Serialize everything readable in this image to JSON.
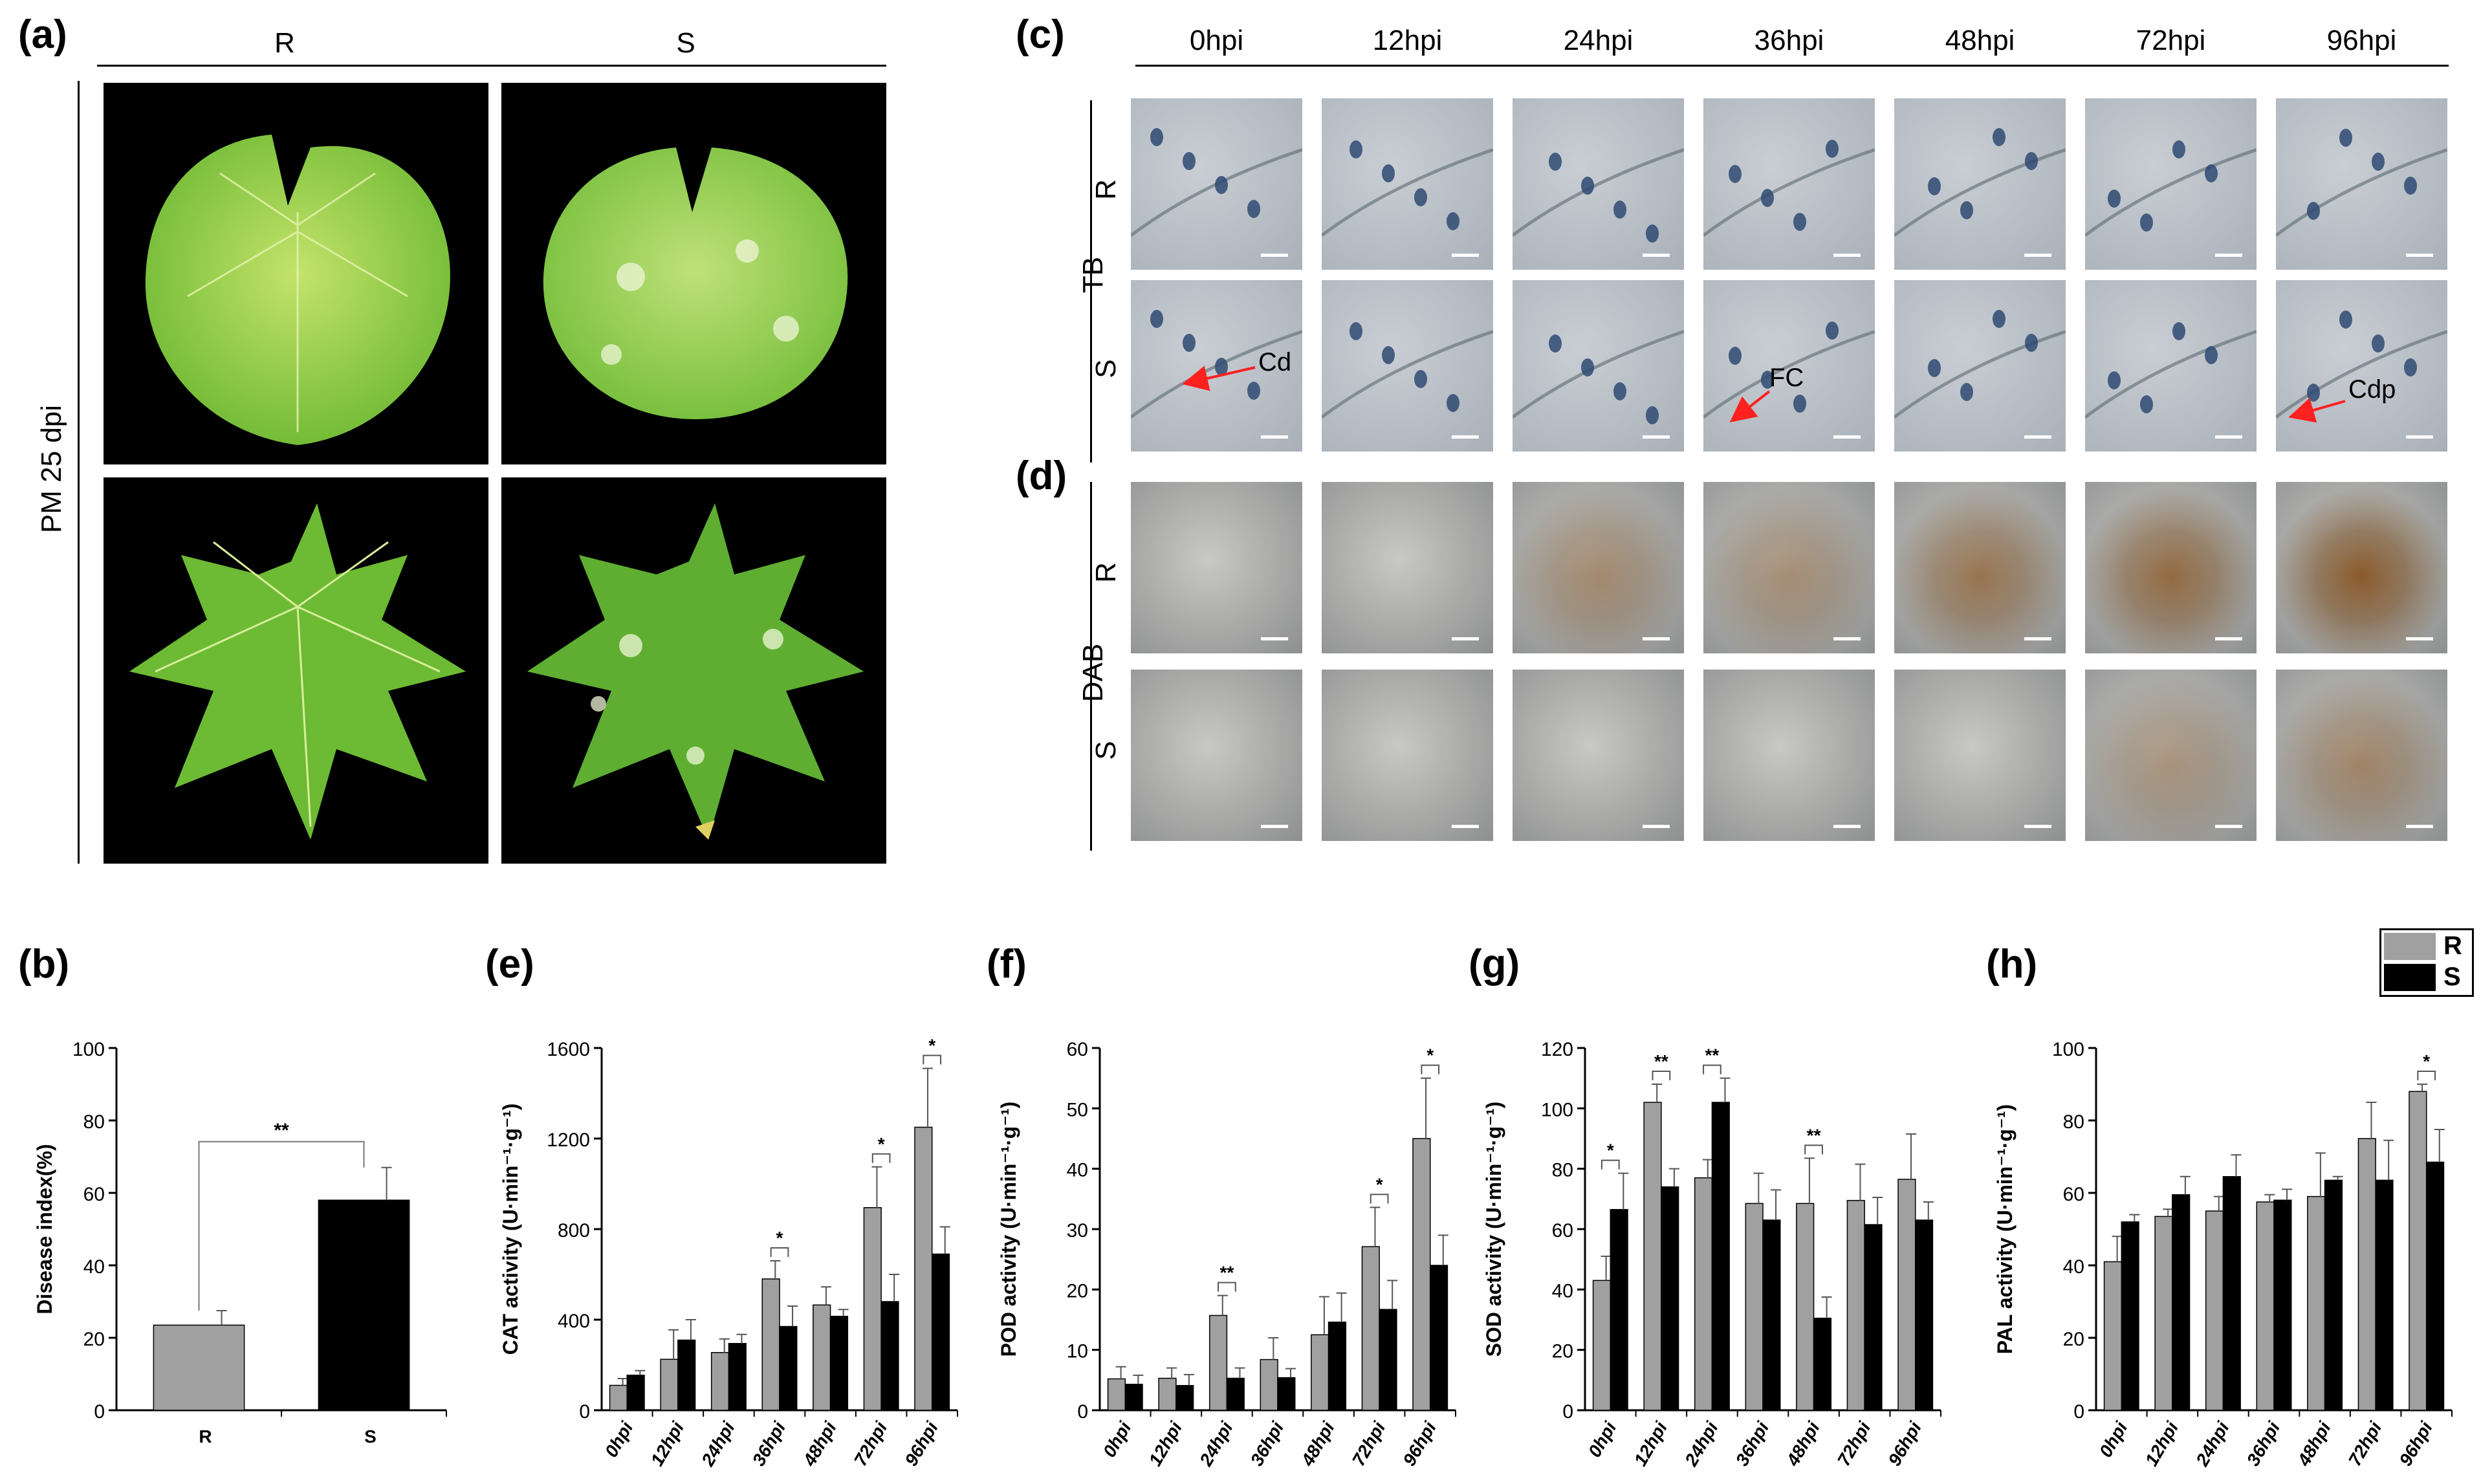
{
  "panels": {
    "a": {
      "letter": "(a)",
      "columns": [
        "R",
        "S"
      ],
      "row_label": "PM 25 dpi"
    },
    "b": {
      "letter": "(b)"
    },
    "c": {
      "letter": "(c)",
      "timepoints": [
        "0hpi",
        "12hpi",
        "24hpi",
        "36hpi",
        "48hpi",
        "72hpi",
        "96hpi"
      ],
      "group_label": "TB",
      "rows": [
        "R",
        "S"
      ],
      "annotations": {
        "cd": "Cd",
        "fc": "FC",
        "cdp": "Cdp"
      }
    },
    "d": {
      "letter": "(d)",
      "group_label": "DAB",
      "rows": [
        "R",
        "S"
      ]
    },
    "e": {
      "letter": "(e)"
    },
    "f": {
      "letter": "(f)"
    },
    "g": {
      "letter": "(g)"
    },
    "h": {
      "letter": "(h)"
    }
  },
  "legend": {
    "items": [
      {
        "label": "R",
        "color": "#a0a0a0"
      },
      {
        "label": "S",
        "color": "#000000"
      }
    ]
  },
  "colors": {
    "R": "#a0a0a0",
    "S": "#000000",
    "leaf_light": "#8fd14f",
    "leaf_dark": "#5fae32",
    "micro_bg": "#b8bdc4",
    "dab_brown": "#8a5a2b"
  },
  "chart_data": [
    {
      "id": "b",
      "type": "bar",
      "categories": [
        "R",
        "S"
      ],
      "series": [
        {
          "values": [
            23.5,
            58
          ],
          "errors": [
            4,
            9
          ]
        }
      ],
      "ylabel": "Disease index(%)",
      "ylim": [
        0,
        100
      ],
      "yticks": [
        0,
        20,
        40,
        60,
        80,
        100
      ],
      "significance": [
        {
          "label": "**"
        }
      ]
    },
    {
      "id": "e",
      "type": "bar",
      "categories": [
        "0hpi",
        "12hpi",
        "24hpi",
        "36hpi",
        "48hpi",
        "72hpi",
        "96hpi"
      ],
      "series": [
        {
          "name": "R",
          "values": [
            110,
            225,
            255,
            580,
            465,
            895,
            1250
          ],
          "errors": [
            30,
            130,
            60,
            80,
            80,
            180,
            260
          ]
        },
        {
          "name": "S",
          "values": [
            155,
            310,
            295,
            370,
            415,
            480,
            690
          ],
          "errors": [
            20,
            90,
            40,
            90,
            30,
            120,
            120
          ]
        }
      ],
      "ylabel": "CAT activity (U·min⁻¹·g⁻¹)",
      "ylim": [
        0,
        1600
      ],
      "yticks": [
        0,
        400,
        800,
        1200,
        1600
      ],
      "significance": [
        {
          "index": 3,
          "label": "*"
        },
        {
          "index": 5,
          "label": "*"
        },
        {
          "index": 6,
          "label": "*"
        }
      ]
    },
    {
      "id": "f",
      "type": "bar",
      "categories": [
        "0hpi",
        "12hpi",
        "24hpi",
        "36hpi",
        "48hpi",
        "72hpi",
        "96hpi"
      ],
      "series": [
        {
          "name": "R",
          "values": [
            5.2,
            5.3,
            15.7,
            8.4,
            12.5,
            27.1,
            45
          ],
          "errors": [
            2,
            1.7,
            3.3,
            3.6,
            6.3,
            6.5,
            10
          ]
        },
        {
          "name": "S",
          "values": [
            4.3,
            4.1,
            5.3,
            5.4,
            14.6,
            16.7,
            24
          ],
          "errors": [
            1.5,
            1.8,
            1.7,
            1.5,
            4.8,
            4.8,
            5
          ]
        }
      ],
      "ylabel": "POD activity (U·min⁻¹·g⁻¹)",
      "ylim": [
        0,
        60
      ],
      "yticks": [
        0,
        10,
        20,
        30,
        40,
        50,
        60
      ],
      "significance": [
        {
          "index": 2,
          "label": "**"
        },
        {
          "index": 5,
          "label": "*"
        },
        {
          "index": 6,
          "label": "*"
        }
      ]
    },
    {
      "id": "g",
      "type": "bar",
      "categories": [
        "0hpi",
        "12hpi",
        "24hpi",
        "36hpi",
        "48hpi",
        "72hpi",
        "96hpi"
      ],
      "series": [
        {
          "name": "R",
          "values": [
            43,
            102,
            77,
            68.5,
            68.5,
            69.5,
            76.5
          ],
          "errors": [
            8,
            6,
            6,
            10,
            15,
            12,
            15
          ]
        },
        {
          "name": "S",
          "values": [
            66.5,
            74,
            102,
            63,
            30.5,
            61.5,
            63
          ],
          "errors": [
            12,
            6,
            8,
            10,
            7,
            9,
            6
          ]
        }
      ],
      "ylabel": "SOD activity (U·min⁻¹·g⁻¹)",
      "ylim": [
        0,
        120
      ],
      "yticks": [
        0,
        20,
        40,
        60,
        80,
        100,
        120
      ],
      "significance": [
        {
          "index": 0,
          "label": "*"
        },
        {
          "index": 1,
          "label": "**"
        },
        {
          "index": 2,
          "label": "**"
        },
        {
          "index": 4,
          "label": "**"
        }
      ]
    },
    {
      "id": "h",
      "type": "bar",
      "categories": [
        "0hpi",
        "12hpi",
        "24hpi",
        "36hpi",
        "48hpi",
        "72hpi",
        "96hpi"
      ],
      "series": [
        {
          "name": "R",
          "values": [
            41,
            53.5,
            55,
            57.5,
            59,
            75,
            88
          ],
          "errors": [
            7,
            2,
            4,
            2,
            12,
            10,
            2
          ]
        },
        {
          "name": "S",
          "values": [
            52,
            59.5,
            64.5,
            58,
            63.5,
            63.5,
            68.5
          ],
          "errors": [
            2,
            5,
            6,
            3,
            1,
            11,
            9
          ]
        }
      ],
      "ylabel": "PAL activity (U·min⁻¹·g⁻¹)",
      "ylim": [
        0,
        100
      ],
      "yticks": [
        0,
        20,
        40,
        60,
        80,
        100
      ],
      "significance": [
        {
          "index": 6,
          "label": "*"
        }
      ]
    }
  ]
}
